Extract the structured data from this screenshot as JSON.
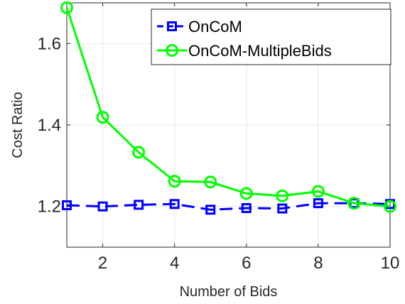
{
  "chart_data": {
    "type": "line",
    "xlabel": "Number of Bids",
    "ylabel": "Cost Ratio",
    "xlim": [
      1,
      10
    ],
    "ylim": [
      1.1,
      1.7
    ],
    "xticks": [
      2,
      4,
      6,
      8,
      10
    ],
    "xtick_labels": [
      "2",
      "4",
      "6",
      "8",
      "10"
    ],
    "yticks": [
      1.2,
      1.4,
      1.6
    ],
    "ytick_labels": [
      "1.2",
      "1.4",
      "1.6"
    ],
    "grid": true,
    "legend_position": "top-right",
    "x": [
      1,
      2,
      3,
      4,
      5,
      6,
      7,
      8,
      9,
      10
    ],
    "series": [
      {
        "name": "OnCoM",
        "color": "#0000ff",
        "line_style": "dashed",
        "marker": "square",
        "values": [
          1.203,
          1.2,
          1.204,
          1.206,
          1.192,
          1.196,
          1.195,
          1.208,
          1.208,
          1.206
        ]
      },
      {
        "name": "OnCoM-MultipleBids",
        "color": "#00ff00",
        "line_style": "solid",
        "marker": "circle",
        "values": [
          1.688,
          1.419,
          1.333,
          1.262,
          1.26,
          1.232,
          1.226,
          1.237,
          1.208,
          1.2
        ]
      }
    ]
  }
}
